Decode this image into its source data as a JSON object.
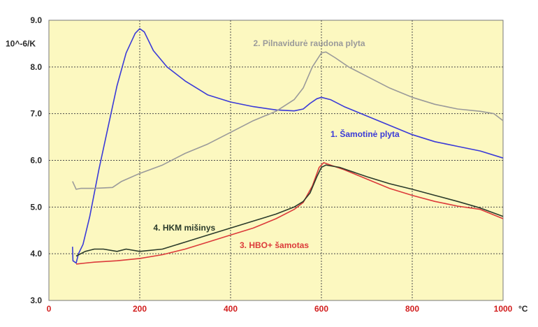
{
  "chart_data": {
    "type": "line",
    "title": "",
    "xlabel": "",
    "ylabel": "",
    "x_unit": "°C",
    "y_unit": "10^-6/K",
    "xlim": [
      0,
      1000
    ],
    "ylim": [
      3.0,
      9.0
    ],
    "x_ticks": [
      "0",
      "200",
      "400",
      "600",
      "800",
      "1000"
    ],
    "y_ticks": [
      "3.0",
      "4.0",
      "5.0",
      "6.0",
      "7.0",
      "8.0",
      "9.0"
    ],
    "grid": true,
    "colors": {
      "plot_bg": "#fcf8c0",
      "grid": "#4a4a4a",
      "axis_tick_x": "#d21e1e"
    },
    "series": [
      {
        "name": "1. Šamotinė plyta",
        "color": "#3a3ad8",
        "points": [
          [
            52,
            4.15
          ],
          [
            53,
            3.85
          ],
          [
            60,
            3.8
          ],
          [
            65,
            4.0
          ],
          [
            75,
            4.2
          ],
          [
            90,
            4.8
          ],
          [
            110,
            5.8
          ],
          [
            130,
            6.7
          ],
          [
            150,
            7.6
          ],
          [
            170,
            8.3
          ],
          [
            190,
            8.72
          ],
          [
            200,
            8.82
          ],
          [
            210,
            8.75
          ],
          [
            230,
            8.35
          ],
          [
            260,
            8.0
          ],
          [
            300,
            7.7
          ],
          [
            350,
            7.4
          ],
          [
            400,
            7.25
          ],
          [
            450,
            7.15
          ],
          [
            500,
            7.08
          ],
          [
            540,
            7.06
          ],
          [
            560,
            7.1
          ],
          [
            575,
            7.22
          ],
          [
            590,
            7.32
          ],
          [
            600,
            7.35
          ],
          [
            620,
            7.3
          ],
          [
            650,
            7.15
          ],
          [
            700,
            6.95
          ],
          [
            750,
            6.75
          ],
          [
            800,
            6.55
          ],
          [
            850,
            6.4
          ],
          [
            900,
            6.3
          ],
          [
            950,
            6.2
          ],
          [
            1000,
            6.05
          ]
        ]
      },
      {
        "name": "2. Pilnavidurė raudona plyta",
        "color": "#9a9a9a",
        "points": [
          [
            52,
            5.55
          ],
          [
            60,
            5.38
          ],
          [
            70,
            5.4
          ],
          [
            100,
            5.4
          ],
          [
            140,
            5.42
          ],
          [
            160,
            5.55
          ],
          [
            200,
            5.72
          ],
          [
            250,
            5.9
          ],
          [
            300,
            6.15
          ],
          [
            350,
            6.35
          ],
          [
            400,
            6.6
          ],
          [
            450,
            6.85
          ],
          [
            500,
            7.05
          ],
          [
            540,
            7.3
          ],
          [
            560,
            7.55
          ],
          [
            580,
            8.0
          ],
          [
            600,
            8.3
          ],
          [
            610,
            8.32
          ],
          [
            630,
            8.2
          ],
          [
            660,
            8.0
          ],
          [
            700,
            7.8
          ],
          [
            750,
            7.55
          ],
          [
            800,
            7.35
          ],
          [
            850,
            7.2
          ],
          [
            900,
            7.1
          ],
          [
            950,
            7.05
          ],
          [
            980,
            7.0
          ],
          [
            1000,
            6.85
          ]
        ]
      },
      {
        "name": "3. HBO+ šamotas",
        "color": "#dc3a3a",
        "points": [
          [
            60,
            3.78
          ],
          [
            80,
            3.8
          ],
          [
            100,
            3.82
          ],
          [
            150,
            3.85
          ],
          [
            200,
            3.9
          ],
          [
            250,
            3.98
          ],
          [
            300,
            4.1
          ],
          [
            350,
            4.25
          ],
          [
            400,
            4.4
          ],
          [
            450,
            4.55
          ],
          [
            500,
            4.75
          ],
          [
            540,
            4.95
          ],
          [
            560,
            5.1
          ],
          [
            580,
            5.45
          ],
          [
            595,
            5.85
          ],
          [
            605,
            5.95
          ],
          [
            620,
            5.9
          ],
          [
            650,
            5.8
          ],
          [
            700,
            5.6
          ],
          [
            750,
            5.4
          ],
          [
            800,
            5.25
          ],
          [
            850,
            5.12
          ],
          [
            900,
            5.02
          ],
          [
            950,
            4.95
          ],
          [
            1000,
            4.75
          ]
        ]
      },
      {
        "name": "4. HKM mišinys",
        "color": "#2a3a2a",
        "points": [
          [
            60,
            3.95
          ],
          [
            80,
            4.05
          ],
          [
            100,
            4.1
          ],
          [
            120,
            4.1
          ],
          [
            150,
            4.05
          ],
          [
            170,
            4.1
          ],
          [
            200,
            4.05
          ],
          [
            250,
            4.1
          ],
          [
            300,
            4.25
          ],
          [
            350,
            4.4
          ],
          [
            400,
            4.55
          ],
          [
            450,
            4.7
          ],
          [
            500,
            4.85
          ],
          [
            540,
            5.0
          ],
          [
            560,
            5.12
          ],
          [
            575,
            5.3
          ],
          [
            590,
            5.65
          ],
          [
            600,
            5.85
          ],
          [
            610,
            5.9
          ],
          [
            640,
            5.85
          ],
          [
            700,
            5.65
          ],
          [
            750,
            5.5
          ],
          [
            800,
            5.38
          ],
          [
            850,
            5.25
          ],
          [
            900,
            5.12
          ],
          [
            950,
            4.98
          ],
          [
            1000,
            4.8
          ]
        ]
      }
    ],
    "annotations": [
      {
        "text": "2. Pilnavidurė raudona plyta",
        "series": 1,
        "x": 450,
        "y": 8.45
      },
      {
        "text": "1. Šamotinė plyta",
        "series": 0,
        "x": 620,
        "y": 6.5
      },
      {
        "text": "4. HKM mišinys",
        "series": 3,
        "x": 230,
        "y": 4.5
      },
      {
        "text": "3. HBO+ šamotas",
        "series": 2,
        "x": 420,
        "y": 4.12
      }
    ]
  }
}
